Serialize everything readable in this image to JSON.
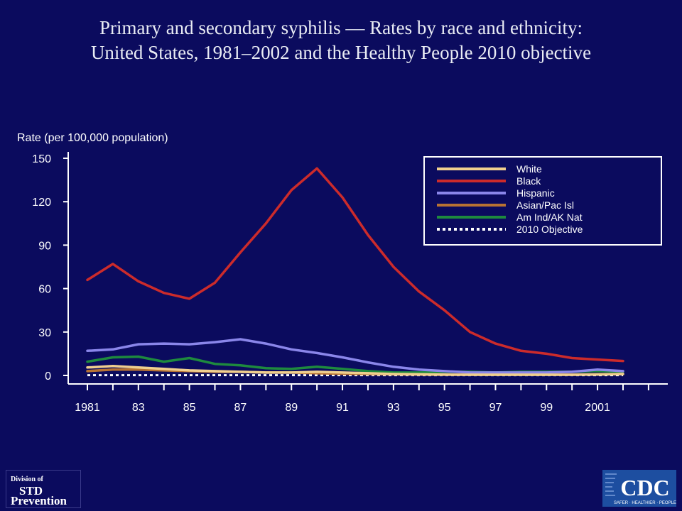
{
  "title_line1": "Primary and secondary syphilis — Rates by race and ethnicity:",
  "title_line2": "United States, 1981–2002 and the Healthy People 2010 objective",
  "logos": {
    "std_line1": "Division of",
    "std_line2": "STD",
    "std_line3": "Prevention",
    "cdc_text": "CDC",
    "cdc_tagline": "SAFER · HEALTHIER · PEOPLE"
  },
  "chart_data": {
    "type": "line",
    "title": "",
    "ylabel": "Rate (per 100,000 population)",
    "xlabel": "",
    "ylim": [
      0,
      150
    ],
    "yticks": [
      0,
      30,
      60,
      90,
      120,
      150
    ],
    "xlim": [
      1981,
      2003
    ],
    "xticks": [
      1981,
      1983,
      1985,
      1987,
      1989,
      1991,
      1993,
      1995,
      1997,
      1999,
      2001
    ],
    "xtick_labels": [
      "1981",
      "83",
      "85",
      "87",
      "89",
      "91",
      "93",
      "95",
      "97",
      "99",
      "2001"
    ],
    "x": [
      1981,
      1982,
      1983,
      1984,
      1985,
      1986,
      1987,
      1988,
      1989,
      1990,
      1991,
      1992,
      1993,
      1994,
      1995,
      1996,
      1997,
      1998,
      1999,
      2000,
      2001,
      2002
    ],
    "legend_position": "top-right",
    "series": [
      {
        "name": "White",
        "color": "#f0cf8e",
        "dashed": false,
        "values": [
          5.5,
          6.5,
          5.5,
          4.5,
          3.5,
          3,
          2.5,
          2,
          2,
          2.5,
          2,
          1.5,
          1,
          0.8,
          0.6,
          0.5,
          0.5,
          0.5,
          0.5,
          0.5,
          0.6,
          1
        ]
      },
      {
        "name": "Black",
        "color": "#cc2b2b",
        "dashed": false,
        "values": [
          66,
          77,
          65,
          57,
          53,
          64,
          85,
          105,
          128,
          143,
          123,
          97,
          75,
          58,
          45,
          30,
          22,
          17,
          15,
          12,
          11,
          10
        ]
      },
      {
        "name": "Hispanic",
        "color": "#8a86ea",
        "dashed": false,
        "values": [
          17,
          18,
          21.5,
          22,
          21.5,
          23,
          25,
          22,
          18,
          15.5,
          12.5,
          9,
          6,
          4,
          3,
          2,
          2,
          2,
          2,
          2.5,
          4,
          3
        ]
      },
      {
        "name": "Asian/Pac Isl",
        "color": "#b87333",
        "dashed": false,
        "values": [
          3,
          4,
          4,
          3.5,
          3,
          2.5,
          2.5,
          2,
          2,
          1.5,
          1.2,
          1,
          0.8,
          0.6,
          0.5,
          0.5,
          0.5,
          0.5,
          0.5,
          0.5,
          0.8,
          1
        ]
      },
      {
        "name": "Am Ind/AK Nat",
        "color": "#1e8a3e",
        "dashed": false,
        "values": [
          9.5,
          12.5,
          13,
          9.5,
          12,
          8,
          7,
          5,
          4.5,
          6,
          4.5,
          3,
          2,
          2,
          2.5,
          2.5,
          2,
          2.5,
          2.5,
          2.5,
          3,
          2.5
        ]
      },
      {
        "name": "2010 Objective",
        "color": "#ffffff",
        "dashed": true,
        "values": [
          0.2,
          0.2,
          0.2,
          0.2,
          0.2,
          0.2,
          0.2,
          0.2,
          0.2,
          0.2,
          0.2,
          0.2,
          0.2,
          0.2,
          0.2,
          0.2,
          0.2,
          0.2,
          0.2,
          0.2,
          0.2,
          0.2
        ]
      }
    ]
  }
}
